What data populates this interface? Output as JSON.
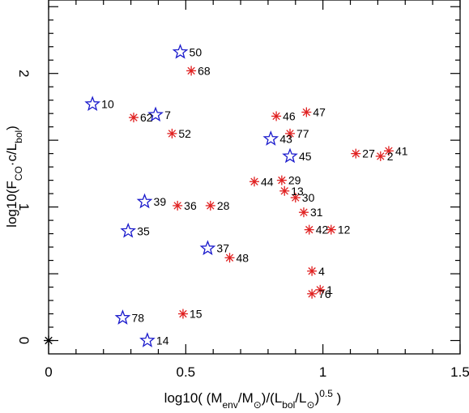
{
  "chart_data": {
    "type": "scatter",
    "title": "",
    "xlabel": "log10( (M_env/M_sun)/(L_bol/L_sun)^0.5 )",
    "ylabel": "log10(F_CO·c/L_bol)",
    "xlim": [
      0,
      1.5
    ],
    "ylim": [
      -0.1,
      2.55
    ],
    "x_ticks": [
      0,
      0.5,
      1,
      1.5
    ],
    "x_tick_labels": [
      "0",
      "0.5",
      "1",
      "1.5"
    ],
    "y_ticks": [
      0,
      1,
      2
    ],
    "y_tick_labels": [
      "0",
      "1",
      "2"
    ],
    "grid": false,
    "legend": "none",
    "series": [
      {
        "marker": "star-outline",
        "color": "#1a1acc",
        "points": [
          {
            "label": "50",
            "x": 0.48,
            "y": 2.16
          },
          {
            "label": "10",
            "x": 0.16,
            "y": 1.77
          },
          {
            "label": "7",
            "x": 0.39,
            "y": 1.69
          },
          {
            "label": "43",
            "x": 0.81,
            "y": 1.51
          },
          {
            "label": "45",
            "x": 0.88,
            "y": 1.38
          },
          {
            "label": "39",
            "x": 0.35,
            "y": 1.04
          },
          {
            "label": "35",
            "x": 0.29,
            "y": 0.82
          },
          {
            "label": "37",
            "x": 0.58,
            "y": 0.69
          },
          {
            "label": "78",
            "x": 0.27,
            "y": 0.17
          },
          {
            "label": "14",
            "x": 0.36,
            "y": 0.0
          }
        ]
      },
      {
        "marker": "asterisk",
        "color": "#e02020",
        "points": [
          {
            "label": "68",
            "x": 0.52,
            "y": 2.02
          },
          {
            "label": "62",
            "x": 0.31,
            "y": 1.67
          },
          {
            "label": "52",
            "x": 0.45,
            "y": 1.55
          },
          {
            "label": "46",
            "x": 0.83,
            "y": 1.68
          },
          {
            "label": "47",
            "x": 0.94,
            "y": 1.71
          },
          {
            "label": "77",
            "x": 0.88,
            "y": 1.55
          },
          {
            "label": "27",
            "x": 1.12,
            "y": 1.4
          },
          {
            "label": "2",
            "x": 1.21,
            "y": 1.38
          },
          {
            "label": "41",
            "x": 1.24,
            "y": 1.42
          },
          {
            "label": "44",
            "x": 0.75,
            "y": 1.19
          },
          {
            "label": "29",
            "x": 0.85,
            "y": 1.2
          },
          {
            "label": "13",
            "x": 0.86,
            "y": 1.12
          },
          {
            "label": "30",
            "x": 0.9,
            "y": 1.07
          },
          {
            "label": "36",
            "x": 0.47,
            "y": 1.01
          },
          {
            "label": "28",
            "x": 0.59,
            "y": 1.01
          },
          {
            "label": "31",
            "x": 0.93,
            "y": 0.96
          },
          {
            "label": "42",
            "x": 0.95,
            "y": 0.83
          },
          {
            "label": "12",
            "x": 1.03,
            "y": 0.83
          },
          {
            "label": "48",
            "x": 0.66,
            "y": 0.62
          },
          {
            "label": "4",
            "x": 0.96,
            "y": 0.52
          },
          {
            "label": "1",
            "x": 0.99,
            "y": 0.38
          },
          {
            "label": "76",
            "x": 0.96,
            "y": 0.35
          },
          {
            "label": "15",
            "x": 0.49,
            "y": 0.2
          }
        ]
      },
      {
        "marker": "asterisk",
        "color": "#000000",
        "points": [
          {
            "label": "",
            "x": 0.0,
            "y": 0.0
          }
        ]
      }
    ]
  }
}
